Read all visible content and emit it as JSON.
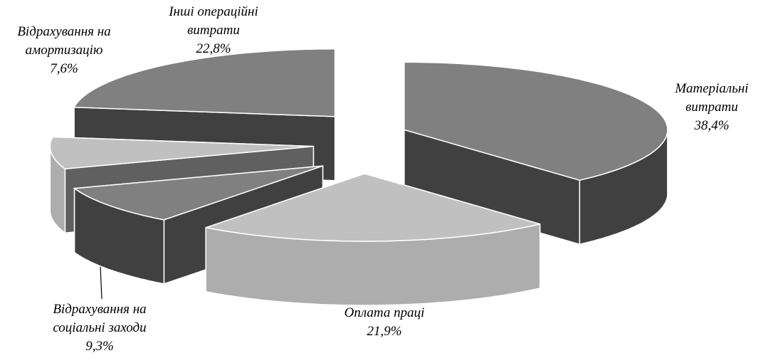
{
  "chart_data": {
    "type": "pie3d",
    "categories": [
      "Матеріальні витрати",
      "Оплата праці",
      "Відрахування на соціальні заходи",
      "Відрахування на амортизацію",
      "Інші операційні витрати"
    ],
    "values": [
      38.4,
      21.9,
      9.3,
      7.6,
      22.8
    ],
    "value_labels": [
      "38,4%",
      "21,9%",
      "9,3%",
      "7,6%",
      "22,8%"
    ],
    "colors": [
      "#808080",
      "#c0c0c0",
      "#808080",
      "#c0c0c0",
      "#808080"
    ]
  }
}
